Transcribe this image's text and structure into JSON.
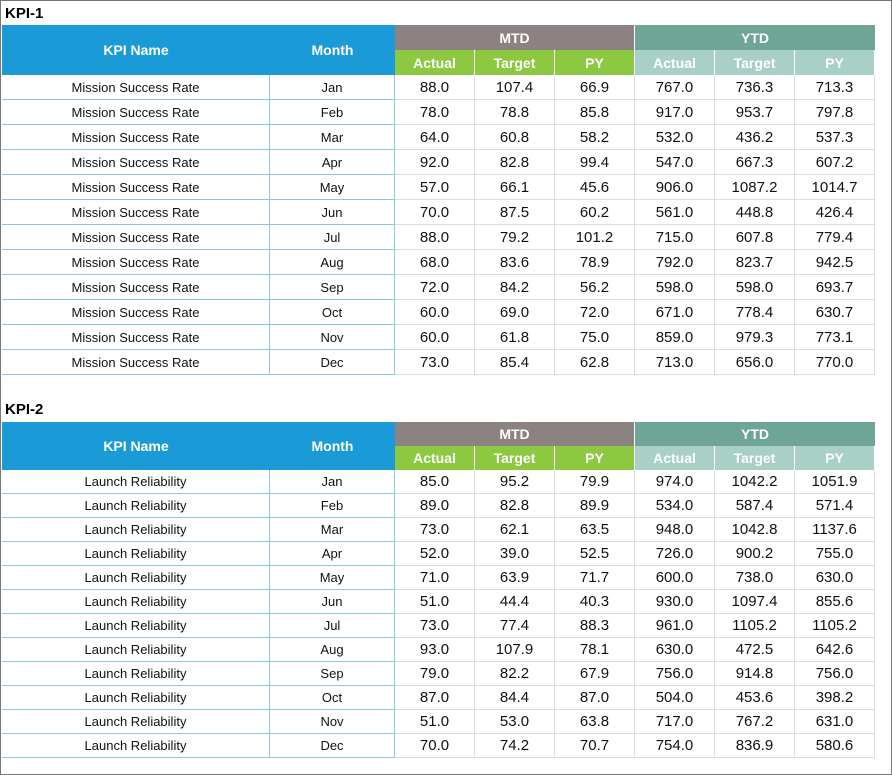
{
  "tables": [
    {
      "title": "KPI-1",
      "headers": {
        "kpi_name": "KPI Name",
        "month": "Month",
        "mtd": "MTD",
        "ytd": "YTD",
        "sub": [
          "Actual",
          "Target",
          "PY",
          "Actual",
          "Target",
          "PY"
        ]
      },
      "rows": [
        [
          "Mission Success Rate",
          "Jan",
          "88.0",
          "107.4",
          "66.9",
          "767.0",
          "736.3",
          "713.3"
        ],
        [
          "Mission Success Rate",
          "Feb",
          "78.0",
          "78.8",
          "85.8",
          "917.0",
          "953.7",
          "797.8"
        ],
        [
          "Mission Success Rate",
          "Mar",
          "64.0",
          "60.8",
          "58.2",
          "532.0",
          "436.2",
          "537.3"
        ],
        [
          "Mission Success Rate",
          "Apr",
          "92.0",
          "82.8",
          "99.4",
          "547.0",
          "667.3",
          "607.2"
        ],
        [
          "Mission Success Rate",
          "May",
          "57.0",
          "66.1",
          "45.6",
          "906.0",
          "1087.2",
          "1014.7"
        ],
        [
          "Mission Success Rate",
          "Jun",
          "70.0",
          "87.5",
          "60.2",
          "561.0",
          "448.8",
          "426.4"
        ],
        [
          "Mission Success Rate",
          "Jul",
          "88.0",
          "79.2",
          "101.2",
          "715.0",
          "607.8",
          "779.4"
        ],
        [
          "Mission Success Rate",
          "Aug",
          "68.0",
          "83.6",
          "78.9",
          "792.0",
          "823.7",
          "942.5"
        ],
        [
          "Mission Success Rate",
          "Sep",
          "72.0",
          "84.2",
          "56.2",
          "598.0",
          "598.0",
          "693.7"
        ],
        [
          "Mission Success Rate",
          "Oct",
          "60.0",
          "69.0",
          "72.0",
          "671.0",
          "778.4",
          "630.7"
        ],
        [
          "Mission Success Rate",
          "Nov",
          "60.0",
          "61.8",
          "75.0",
          "859.0",
          "979.3",
          "773.1"
        ],
        [
          "Mission Success Rate",
          "Dec",
          "73.0",
          "85.4",
          "62.8",
          "713.0",
          "656.0",
          "770.0"
        ]
      ]
    },
    {
      "title": "KPI-2",
      "headers": {
        "kpi_name": "KPI Name",
        "month": "Month",
        "mtd": "MTD",
        "ytd": "YTD",
        "sub": [
          "Actual",
          "Target",
          "PY",
          "Actual",
          "Target",
          "PY"
        ]
      },
      "rows": [
        [
          "Launch Reliability",
          "Jan",
          "85.0",
          "95.2",
          "79.9",
          "974.0",
          "1042.2",
          "1051.9"
        ],
        [
          "Launch Reliability",
          "Feb",
          "89.0",
          "82.8",
          "89.9",
          "534.0",
          "587.4",
          "571.4"
        ],
        [
          "Launch Reliability",
          "Mar",
          "73.0",
          "62.1",
          "63.5",
          "948.0",
          "1042.8",
          "1137.6"
        ],
        [
          "Launch Reliability",
          "Apr",
          "52.0",
          "39.0",
          "52.5",
          "726.0",
          "900.2",
          "755.0"
        ],
        [
          "Launch Reliability",
          "May",
          "71.0",
          "63.9",
          "71.7",
          "600.0",
          "738.0",
          "630.0"
        ],
        [
          "Launch Reliability",
          "Jun",
          "51.0",
          "44.4",
          "40.3",
          "930.0",
          "1097.4",
          "855.6"
        ],
        [
          "Launch Reliability",
          "Jul",
          "73.0",
          "77.4",
          "88.3",
          "961.0",
          "1105.2",
          "1105.2"
        ],
        [
          "Launch Reliability",
          "Aug",
          "93.0",
          "107.9",
          "78.1",
          "630.0",
          "472.5",
          "642.6"
        ],
        [
          "Launch Reliability",
          "Sep",
          "79.0",
          "82.2",
          "67.9",
          "756.0",
          "914.8",
          "756.0"
        ],
        [
          "Launch Reliability",
          "Oct",
          "87.0",
          "84.4",
          "87.0",
          "504.0",
          "453.6",
          "398.2"
        ],
        [
          "Launch Reliability",
          "Nov",
          "51.0",
          "53.0",
          "63.8",
          "717.0",
          "767.2",
          "631.0"
        ],
        [
          "Launch Reliability",
          "Dec",
          "70.0",
          "74.2",
          "70.7",
          "754.0",
          "836.9",
          "580.6"
        ]
      ]
    }
  ]
}
